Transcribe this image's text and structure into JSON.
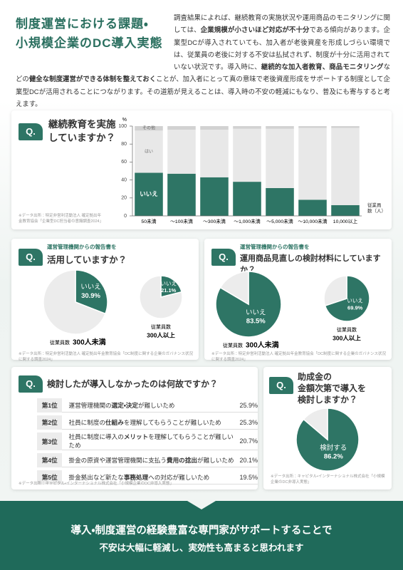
{
  "header": {
    "title": [
      "制度運営における課題・",
      "小規模企業のDC導入実態"
    ],
    "paragraph": [
      {
        "text": "調査結果によれば、継続教育の実施状況や運用商品のモニタリングに関しては、"
      },
      {
        "text": "企業規模が小さいほど対応が不十分",
        "bold": true
      },
      {
        "text": "である傾向があります。企業型DCが導入されていても、加入者が老後資産を形成しづらい環境では、従業員の老後に対する不安は払拭されず、制度が十分に活用されていない状況です。導入時に、"
      },
      {
        "text": "継続的な加入者教育、商品モニタリング",
        "bold": true
      },
      {
        "text": "などの"
      },
      {
        "text": "健全な制度運営ができる体制を整えておく",
        "bold": true
      },
      {
        "text": "ことが、加入者にとって真の意味で老後資産形成をサポートする制度として企業型DCが活用されることにつながります。その道筋が見えることは、導入時の不安の軽減にもなり、普及にも寄与すると考えます。"
      }
    ]
  },
  "chart_data": [
    {
      "type": "bar",
      "stacked": true,
      "badge": "Q.",
      "title": [
        "継続教育を実施",
        "していますか？"
      ],
      "y_label": "%",
      "x_label": "従業員数（人）",
      "categories": [
        "50未満",
        "～100未満",
        "～300未満",
        "～1,000未満",
        "～5,000未満",
        "～10,000未満",
        "10,000以上"
      ],
      "series": [
        {
          "name": "いいえ",
          "color": "#2e7565",
          "values": [
            48,
            47,
            43,
            38,
            31,
            18,
            12
          ]
        },
        {
          "name": "はい",
          "color": "#e8e8e8",
          "values": [
            47,
            49,
            53,
            59,
            66,
            80,
            86
          ]
        },
        {
          "name": "その他",
          "color": "#d2d2d2",
          "values": [
            5,
            4,
            4,
            3,
            3,
            2,
            2
          ]
        }
      ],
      "ylim": [
        0,
        100
      ],
      "yticks": [
        0,
        20,
        40,
        60,
        80,
        100
      ],
      "source": "※データ出所：特定非営利活動法人 確定拠出年金教育協会「企業型DC担当者の意識調査2024」"
    },
    {
      "type": "pie",
      "badge": "Q.",
      "title_prefix": "運営管理機関からの報告書を",
      "title": [
        "活用していますか？"
      ],
      "colors": [
        "#2e7565",
        "#ececec"
      ],
      "pies": [
        {
          "caption": {
            "label": "従業員数",
            "value": "300人未満"
          },
          "categories": [
            "いいえ",
            null
          ],
          "values": [
            30.9,
            69.1
          ],
          "value_labels": [
            "30.9%",
            null
          ]
        },
        {
          "caption": {
            "label": "従業員数",
            "value": "300人以上"
          },
          "categories": [
            "いいえ",
            null
          ],
          "values": [
            21.1,
            78.9
          ],
          "value_labels": [
            "21.1%",
            null
          ]
        }
      ],
      "source": "※データ出所：特定非営利活動法人 確定拠出年金教育協会「DC制度に関する企業のガバナンス状況に関する調査2024」"
    },
    {
      "type": "pie",
      "badge": "Q.",
      "title_prefix": "運営管理機関からの報告書を",
      "title": [
        "運用商品見直しの検討材料にしていますか？"
      ],
      "colors": [
        "#2e7565",
        "#ececec"
      ],
      "pies": [
        {
          "caption": {
            "label": "従業員数",
            "value": "300人未満"
          },
          "categories": [
            "いいえ",
            null
          ],
          "values": [
            83.5,
            16.5
          ],
          "value_labels": [
            "83.5%",
            null
          ]
        },
        {
          "caption": {
            "label": "従業員数",
            "value": "300人以上"
          },
          "categories": [
            "いいえ",
            null
          ],
          "values": [
            69.9,
            30.1
          ],
          "value_labels": [
            "69.9%",
            null
          ]
        }
      ],
      "source": "※データ出所：特定非営利活動法人 確定拠出年金教育協会「DC制度に関する企業のガバナンス状況に関する調査2024」"
    },
    {
      "type": "pie",
      "badge": "Q.",
      "title": [
        "助成金の",
        "金額次第で導入を",
        "検討しますか？"
      ],
      "colors": [
        "#2e7565",
        "#ececec"
      ],
      "pies": [
        {
          "categories": [
            "検討する",
            null
          ],
          "values": [
            86.2,
            13.8
          ],
          "value_labels": [
            "86.2%",
            null
          ]
        }
      ],
      "source": "※データ出所：キャピタル・インターナショナル株式会社「小規模企業のDC非導入実態」"
    }
  ],
  "table": {
    "badge": "Q.",
    "title": "検討したが導入しなかったのは何故ですか？",
    "rows": [
      {
        "rank": "第1位",
        "reason": [
          {
            "text": "運営管理機関の"
          },
          {
            "text": "選定・決定",
            "bold": true
          },
          {
            "text": "が難しいため"
          }
        ],
        "share": "25.9%"
      },
      {
        "rank": "第2位",
        "reason": [
          {
            "text": "社員に制度の"
          },
          {
            "text": "仕組み",
            "bold": true
          },
          {
            "text": "を理解してもらうことが難しいため"
          }
        ],
        "share": "25.3%"
      },
      {
        "rank": "第3位",
        "reason": [
          {
            "text": "社員に制度に導入の"
          },
          {
            "text": "メリット",
            "bold": true
          },
          {
            "text": "を理解してもらうことが難しいため"
          }
        ],
        "share": "20.7%"
      },
      {
        "rank": "第4位",
        "reason": [
          {
            "text": "掛金の原資や運営管理機関に支払う"
          },
          {
            "text": "費用の捻出",
            "bold": true
          },
          {
            "text": "が難しいため"
          }
        ],
        "share": "20.1%"
      },
      {
        "rank": "第5位",
        "reason": [
          {
            "text": "掛金拠出など新たな"
          },
          {
            "text": "事務処理",
            "bold": true
          },
          {
            "text": "への対応が難しいため"
          }
        ],
        "share": "19.5%"
      }
    ],
    "source": "※データ出所：キャピタル・インターナショナル株式会社「小規模企業のDC非導入実態」"
  },
  "footer": {
    "lines": [
      "導入・制度運営の経験豊富な専門家がサポートすることで",
      "不安は大幅に軽減し、実効性も高まると思われます"
    ]
  }
}
